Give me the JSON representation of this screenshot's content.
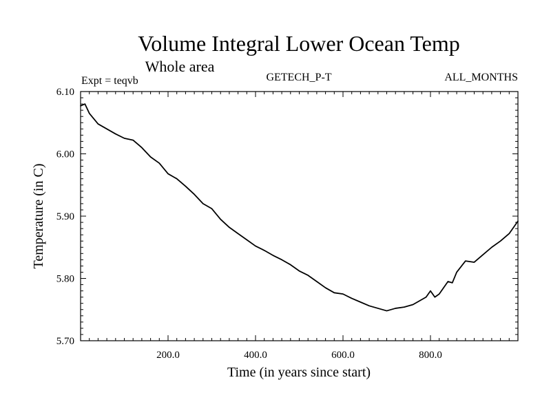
{
  "chart_data": {
    "type": "line",
    "title": "Volume Integral Lower Ocean Temp",
    "subtitle": "Whole area",
    "annotations": {
      "left": "Expt = teqvb",
      "center": "GETECH_P-T",
      "right": "ALL_MONTHS"
    },
    "xlabel": "Time (in years since start)",
    "ylabel": "Temperature (in C)",
    "xlim": [
      0,
      1000
    ],
    "ylim": [
      5.7,
      6.1
    ],
    "x_ticks": [
      200,
      400,
      600,
      800
    ],
    "x_tick_labels": [
      "200.0",
      "400.0",
      "600.0",
      "800.0"
    ],
    "y_ticks": [
      5.7,
      5.8,
      5.9,
      6.0,
      6.1
    ],
    "y_tick_labels": [
      "5.70",
      "5.80",
      "5.90",
      "6.00",
      "6.10"
    ],
    "grid": false,
    "line_color": "#000000",
    "series": [
      {
        "x": [
          0,
          10,
          20,
          40,
          60,
          80,
          100,
          120,
          140,
          160,
          180,
          200,
          220,
          240,
          260,
          280,
          300,
          320,
          340,
          360,
          380,
          400,
          420,
          440,
          460,
          480,
          500,
          520,
          540,
          560,
          580,
          600,
          620,
          640,
          660,
          680,
          700,
          720,
          740,
          760,
          780,
          790,
          800,
          810,
          820,
          840,
          850,
          860,
          880,
          900,
          920,
          940,
          960,
          980,
          1000
        ],
        "values": [
          6.077,
          6.08,
          6.065,
          6.048,
          6.04,
          6.032,
          6.025,
          6.022,
          6.01,
          5.995,
          5.985,
          5.968,
          5.96,
          5.948,
          5.935,
          5.92,
          5.912,
          5.895,
          5.882,
          5.872,
          5.862,
          5.852,
          5.845,
          5.837,
          5.83,
          5.822,
          5.812,
          5.805,
          5.795,
          5.785,
          5.777,
          5.775,
          5.768,
          5.762,
          5.756,
          5.752,
          5.748,
          5.752,
          5.754,
          5.758,
          5.766,
          5.77,
          5.78,
          5.77,
          5.775,
          5.795,
          5.793,
          5.81,
          5.828,
          5.826,
          5.838,
          5.85,
          5.86,
          5.872,
          5.892
        ]
      }
    ]
  }
}
